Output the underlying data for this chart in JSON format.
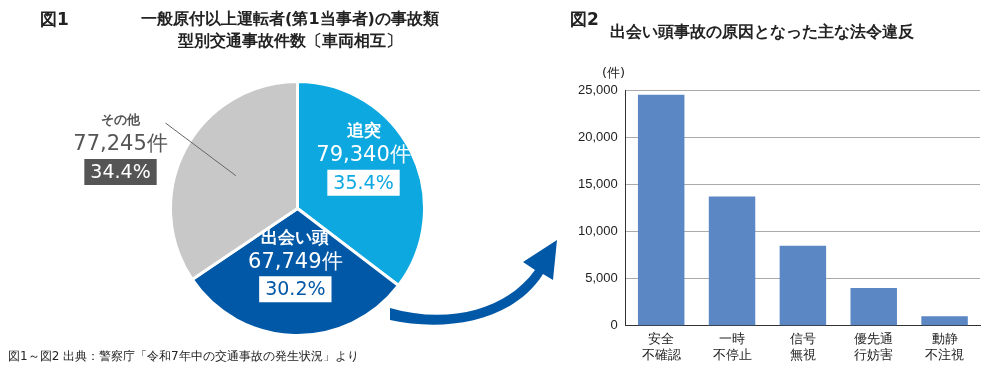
{
  "chart_data": [
    {
      "type": "pie",
      "title": "一般原付以上運転者(第1当事者)の事故類型別交通事故件数〔車両相互〕",
      "annotations": [
        "図1",
        "図1～図2 出典：警察庁「令和7年中の交通事故の発生状況」より"
      ],
      "categories": [
        "追突",
        "出会い頭",
        "その他"
      ],
      "values": [
        79340,
        67749,
        77245
      ],
      "value_labels": [
        "79,340件\n35.4%",
        "67,749件\n30.2%",
        "77,245件\n34.4%"
      ],
      "colors": [
        "#0ea8e0",
        "#0058a6",
        "#c8c8c8"
      ],
      "legend": false
    },
    {
      "type": "bar",
      "title": "出会い頭事故の原因となった主な法令違反",
      "annotations": [
        "図2"
      ],
      "ylabel": "(件)",
      "categories": [
        "安全不確認",
        "一時不停止",
        "信号無視",
        "優先通行妨害",
        "動静不注視"
      ],
      "values": [
        24500,
        13700,
        8500,
        4000,
        1000
      ],
      "color": "#5b87c5",
      "ylim": [
        0,
        25000
      ],
      "yticks": [
        0,
        {
          "value": 5000,
          "label": "5,000"
        },
        {
          "value": 10000,
          "label": "10,000"
        },
        {
          "value": 15000,
          "label": "15,000"
        },
        {
          "value": 20000,
          "label": "20,000"
        },
        {
          "value": 25000,
          "label": "25,000"
        }
      ],
      "grid": "y",
      "legend": false
    }
  ]
}
